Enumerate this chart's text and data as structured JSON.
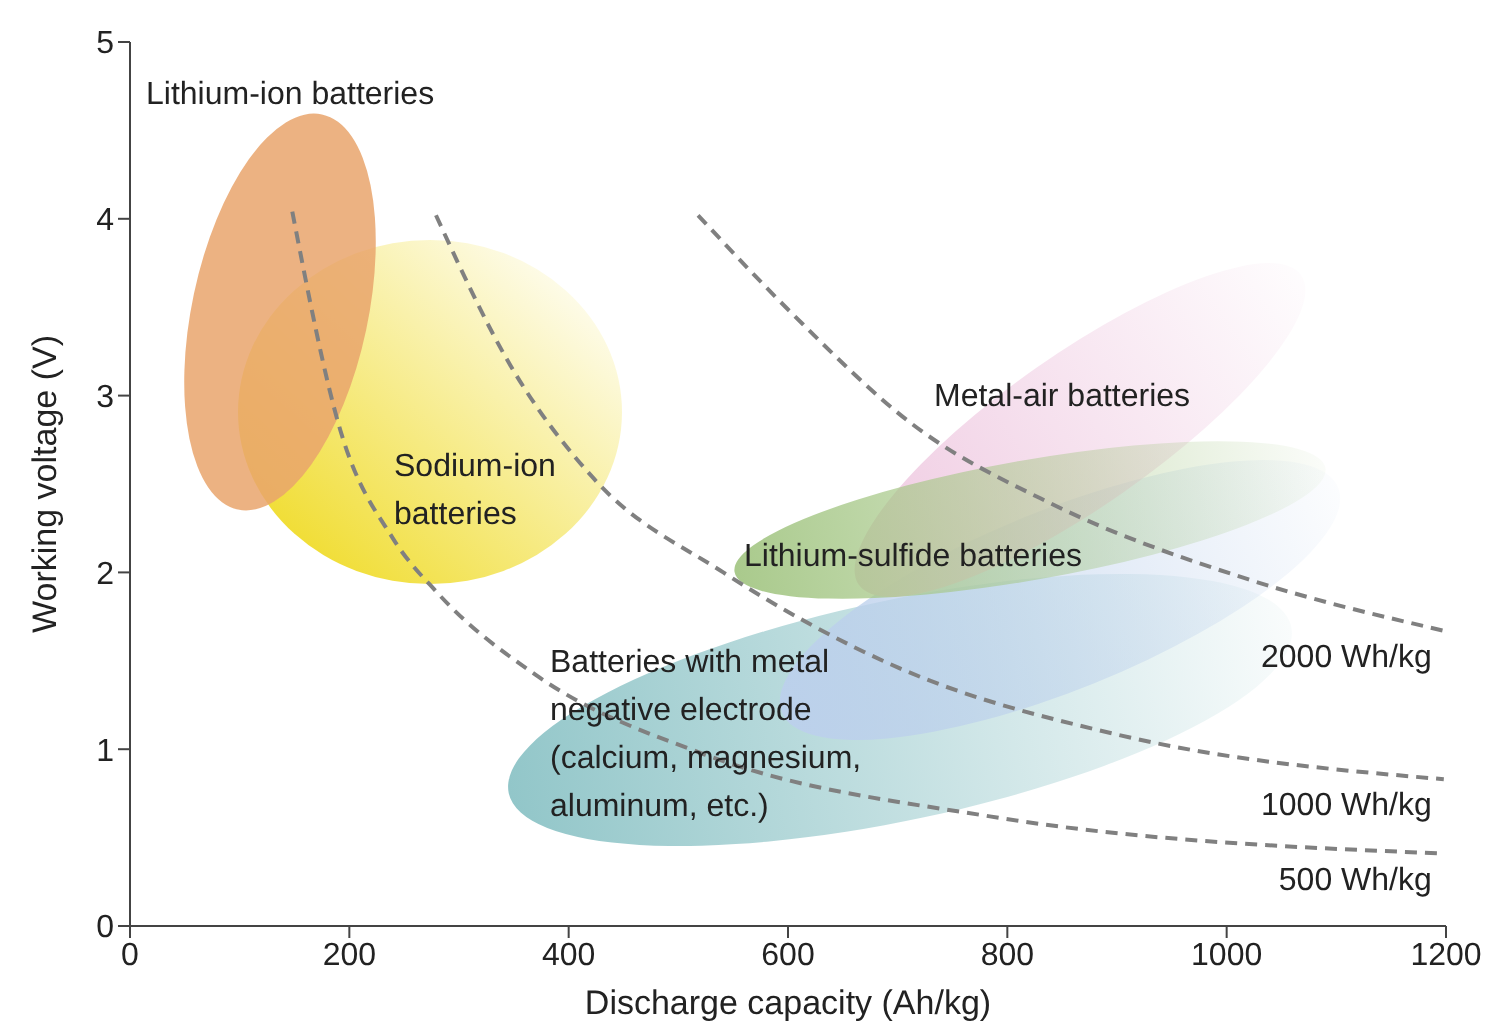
{
  "chart_data": {
    "type": "line",
    "xlabel": "Discharge capacity (Ah/kg)",
    "ylabel": "Working voltage (V)",
    "xlim": [
      0,
      1200
    ],
    "xticks": [
      0,
      200,
      400,
      600,
      800,
      1000,
      1200
    ],
    "ylim": [
      0,
      5
    ],
    "yticks": [
      0,
      1,
      2,
      3,
      4,
      5
    ],
    "grid": false,
    "legend": false,
    "marker": "none",
    "line_style": "dashed",
    "series": [
      {
        "name": "2000 Wh/kg",
        "color": "#808080",
        "x": [
          518,
          606,
          713,
          843,
          1020,
          1198
        ],
        "values": [
          4.02,
          3.45,
          2.84,
          2.38,
          1.96,
          1.67
        ]
      },
      {
        "name": "1000 Wh/kg",
        "color": "#808080",
        "x": [
          279,
          346,
          423,
          541,
          701,
          902,
          1198
        ],
        "values": [
          4.02,
          3.18,
          2.53,
          2.0,
          1.46,
          1.08,
          0.83
        ]
      },
      {
        "name": "500 Wh/kg",
        "color": "#808080",
        "x": [
          148,
          192,
          240,
          281,
          370,
          524,
          784,
          1198
        ],
        "values": [
          4.04,
          2.8,
          2.19,
          1.88,
          1.42,
          0.97,
          0.62,
          0.41
        ]
      }
    ],
    "annotations": [
      "Lithium-ion batteries",
      "Sodium-ion\nbatteries",
      "Metal-air batteries",
      "Lithium-sulfide batteries",
      "Batteries with metal\nnegative electrode\n(calcium, magnesium,\naluminum, etc.)"
    ]
  }
}
